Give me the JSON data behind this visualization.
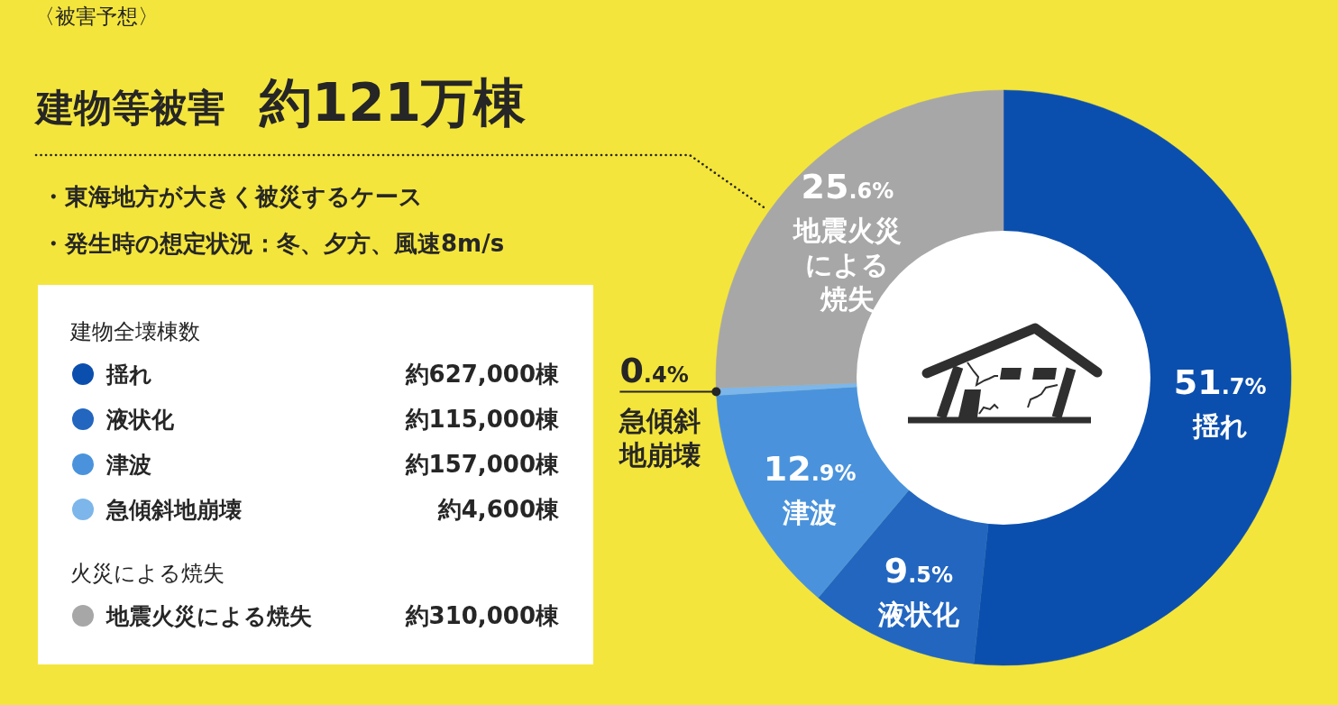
{
  "chart_data": {
    "type": "donut",
    "subtitle": "〈被害予想〉",
    "title": "建物等被害 約121万棟",
    "categories": [
      "揺れ",
      "液状化",
      "津波",
      "急傾斜地崩壊",
      "地震火災による焼失"
    ],
    "values": [
      51.7,
      9.5,
      12.9,
      0.4,
      25.6
    ],
    "colors": [
      "#0b4fae",
      "#2266c0",
      "#4a93dc",
      "#7cb6ea",
      "#a7a7a7"
    ],
    "value_labels": [
      "51.7%",
      "9.5%",
      "12.9%",
      "0.4%",
      "25.6%"
    ],
    "legend": "left",
    "legend_title": "建物全壊棟数",
    "annotations": [
      "・東海地方が大きく被災するケース",
      "・発生時の想定状況：冬、夕方、風速8m/s",
      "火災による焼失",
      "約627,000棟",
      "約115,000棟",
      "約157,000棟",
      "約4,600棟",
      "約310,000棟"
    ]
  }
}
